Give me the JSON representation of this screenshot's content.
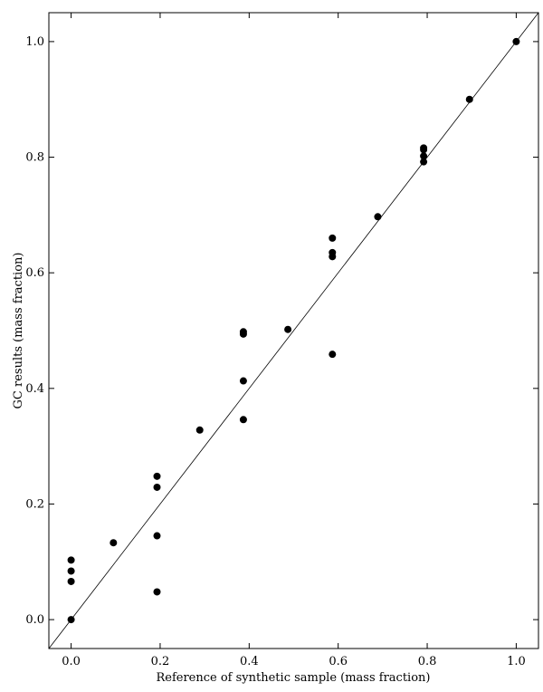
{
  "chart_data": {
    "type": "scatter",
    "xlabel": "Reference of synthetic sample (mass fraction)",
    "ylabel": "GC results (mass fraction)",
    "xlim": [
      -0.05,
      1.05
    ],
    "ylim": [
      -0.05,
      1.05
    ],
    "x_ticks": [
      "0.0",
      "0.2",
      "0.4",
      "0.6",
      "0.8",
      "1.0"
    ],
    "y_ticks": [
      "0.0",
      "0.2",
      "0.4",
      "0.6",
      "0.8",
      "1.0"
    ],
    "grid": false,
    "reference_line": {
      "from": [
        -0.05,
        -0.05
      ],
      "to": [
        1.05,
        1.05
      ]
    },
    "colors": {
      "points": "#000000",
      "line": "#000000",
      "frame": "#000000"
    },
    "points": [
      {
        "x": 0.0,
        "y": 0.0
      },
      {
        "x": 0.0,
        "y": 0.066
      },
      {
        "x": 0.0,
        "y": 0.084
      },
      {
        "x": 0.0,
        "y": 0.103
      },
      {
        "x": 0.095,
        "y": 0.133
      },
      {
        "x": 0.193,
        "y": 0.048
      },
      {
        "x": 0.193,
        "y": 0.145
      },
      {
        "x": 0.193,
        "y": 0.229
      },
      {
        "x": 0.193,
        "y": 0.248
      },
      {
        "x": 0.289,
        "y": 0.328
      },
      {
        "x": 0.387,
        "y": 0.346
      },
      {
        "x": 0.387,
        "y": 0.413
      },
      {
        "x": 0.387,
        "y": 0.494
      },
      {
        "x": 0.387,
        "y": 0.498
      },
      {
        "x": 0.487,
        "y": 0.502
      },
      {
        "x": 0.587,
        "y": 0.459
      },
      {
        "x": 0.587,
        "y": 0.628
      },
      {
        "x": 0.587,
        "y": 0.635
      },
      {
        "x": 0.587,
        "y": 0.66
      },
      {
        "x": 0.689,
        "y": 0.697
      },
      {
        "x": 0.792,
        "y": 0.792
      },
      {
        "x": 0.792,
        "y": 0.802
      },
      {
        "x": 0.792,
        "y": 0.813
      },
      {
        "x": 0.792,
        "y": 0.816
      },
      {
        "x": 0.895,
        "y": 0.9
      },
      {
        "x": 1.0,
        "y": 1.0
      }
    ]
  }
}
